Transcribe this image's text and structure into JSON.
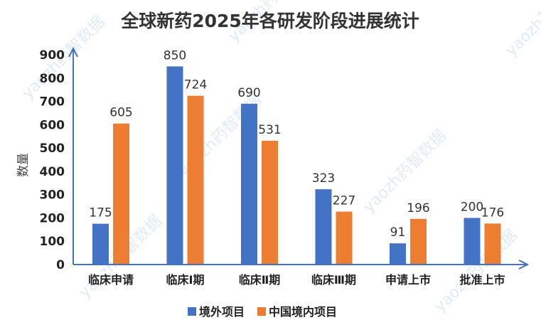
{
  "chart_data": {
    "type": "bar",
    "title": "全球新药2025年各研发阶段进展统计",
    "ylabel": "数量",
    "xlabel": "",
    "ylim": [
      0,
      900
    ],
    "yticks": [
      0,
      100,
      200,
      300,
      400,
      500,
      600,
      700,
      800,
      900
    ],
    "categories": [
      "临床申请",
      "临床Ⅰ期",
      "临床Ⅱ期",
      "临床Ⅲ期",
      "申请上市",
      "批准上市"
    ],
    "series": [
      {
        "name": "境外项目",
        "color": "#4472c4",
        "values": [
          175,
          850,
          690,
          323,
          91,
          200
        ]
      },
      {
        "name": "中国境内项目",
        "color": "#ed7d31",
        "values": [
          605,
          724,
          531,
          227,
          196,
          176
        ]
      }
    ],
    "grid": false,
    "legend_position": "bottom",
    "watermark": "yaozh药智数据"
  }
}
